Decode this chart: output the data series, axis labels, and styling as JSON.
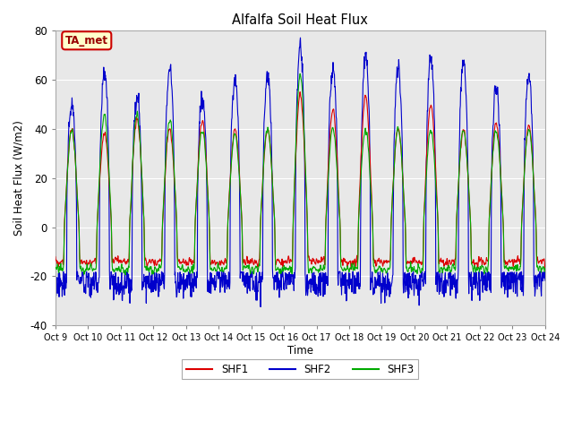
{
  "title": "Alfalfa Soil Heat Flux",
  "ylabel": "Soil Heat Flux (W/m2)",
  "xlabel": "Time",
  "ylim": [
    -40,
    80
  ],
  "yticks": [
    -40,
    -20,
    0,
    20,
    40,
    60,
    80
  ],
  "xtick_labels": [
    "Oct 9",
    "Oct 10",
    "Oct 11",
    "Oct 12",
    "Oct 13",
    "Oct 14",
    "Oct 15",
    "Oct 16",
    "Oct 17",
    "Oct 18",
    "Oct 19",
    "Oct 20",
    "Oct 21",
    "Oct 22",
    "Oct 23",
    "Oct 24"
  ],
  "colors": {
    "SHF1": "#dd0000",
    "SHF2": "#0000cc",
    "SHF3": "#00aa00"
  },
  "linewidth": 0.8,
  "fig_bg_color": "#ffffff",
  "plot_bg_color": "#e8e8e8",
  "grid_color": "#ffffff",
  "annotation_text": "TA_met",
  "annotation_color": "#990000",
  "annotation_bg": "#ffffcc",
  "annotation_edge": "#cc0000"
}
